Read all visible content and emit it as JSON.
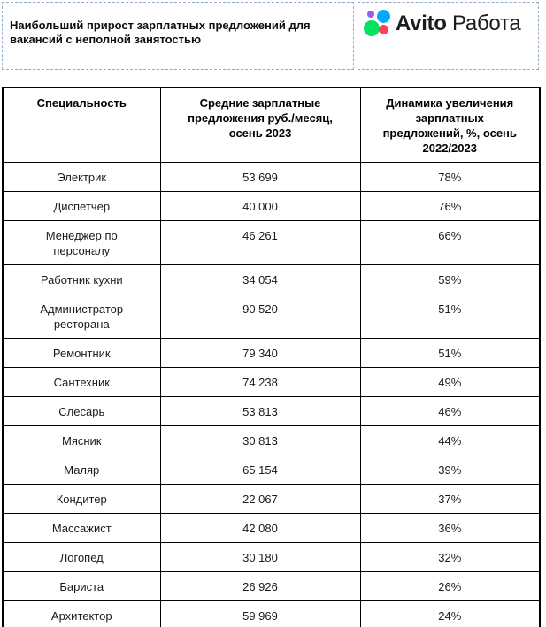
{
  "header": {
    "title": "Наибольший прирост зарплатных предложений для\nвакансий с неполной занятостью",
    "logo": {
      "brand_bold": "Avito",
      "brand_regular": "Работа",
      "colors": {
        "green": "#04E061",
        "blue": "#00AAFF",
        "purple": "#965EEB",
        "red": "#FF4053"
      }
    }
  },
  "table": {
    "columns": {
      "specialty": "Специальность",
      "salary": "Средние зарплатные\nпредложения руб./месяц,\nосень 2023",
      "growth": "Динамика увеличения\nзарплатных\nпредложений, %, осень\n2022/2023"
    },
    "rows": [
      {
        "specialty": "Электрик",
        "salary": "53 699",
        "growth": "78%"
      },
      {
        "specialty": "Диспетчер",
        "salary": "40 000",
        "growth": "76%"
      },
      {
        "specialty": "Менеджер по\nперсоналу",
        "salary": "46 261",
        "growth": "66%"
      },
      {
        "specialty": "Работник кухни",
        "salary": "34 054",
        "growth": "59%"
      },
      {
        "specialty": "Администратор\nресторана",
        "salary": "90 520",
        "growth": "51%"
      },
      {
        "specialty": "Ремонтник",
        "salary": "79 340",
        "growth": "51%"
      },
      {
        "specialty": "Сантехник",
        "salary": "74 238",
        "growth": "49%"
      },
      {
        "specialty": "Слесарь",
        "salary": "53 813",
        "growth": "46%"
      },
      {
        "specialty": "Мясник",
        "salary": "30 813",
        "growth": "44%"
      },
      {
        "specialty": "Маляр",
        "salary": "65 154",
        "growth": "39%"
      },
      {
        "specialty": "Кондитер",
        "salary": "22 067",
        "growth": "37%"
      },
      {
        "specialty": "Массажист",
        "salary": "42 080",
        "growth": "36%"
      },
      {
        "specialty": "Логопед",
        "salary": "30 180",
        "growth": "32%"
      },
      {
        "specialty": "Бариста",
        "salary": "26 926",
        "growth": "26%"
      },
      {
        "specialty": "Архитектор",
        "salary": "59 969",
        "growth": "24%"
      }
    ]
  },
  "chart_data": {
    "type": "table",
    "title": "Наибольший прирост зарплатных предложений для вакансий с неполной занятостью",
    "source_brand": "Avito Работа",
    "columns": [
      "Специальность",
      "Средние зарплатные предложения руб./месяц, осень 2023",
      "Динамика увеличения зарплатных предложений, %, осень 2022/2023"
    ],
    "rows": [
      [
        "Электрик",
        53699,
        78
      ],
      [
        "Диспетчер",
        40000,
        76
      ],
      [
        "Менеджер по персоналу",
        46261,
        66
      ],
      [
        "Работник кухни",
        34054,
        59
      ],
      [
        "Администратор ресторана",
        90520,
        51
      ],
      [
        "Ремонтник",
        79340,
        51
      ],
      [
        "Сантехник",
        74238,
        49
      ],
      [
        "Слесарь",
        53813,
        46
      ],
      [
        "Мясник",
        30813,
        44
      ],
      [
        "Маляр",
        65154,
        39
      ],
      [
        "Кондитер",
        22067,
        37
      ],
      [
        "Массажист",
        42080,
        36
      ],
      [
        "Логопед",
        30180,
        32
      ],
      [
        "Бариста",
        26926,
        26
      ],
      [
        "Архитектор",
        59969,
        24
      ]
    ],
    "units": {
      "salary": "руб./месяц",
      "growth": "%"
    }
  }
}
